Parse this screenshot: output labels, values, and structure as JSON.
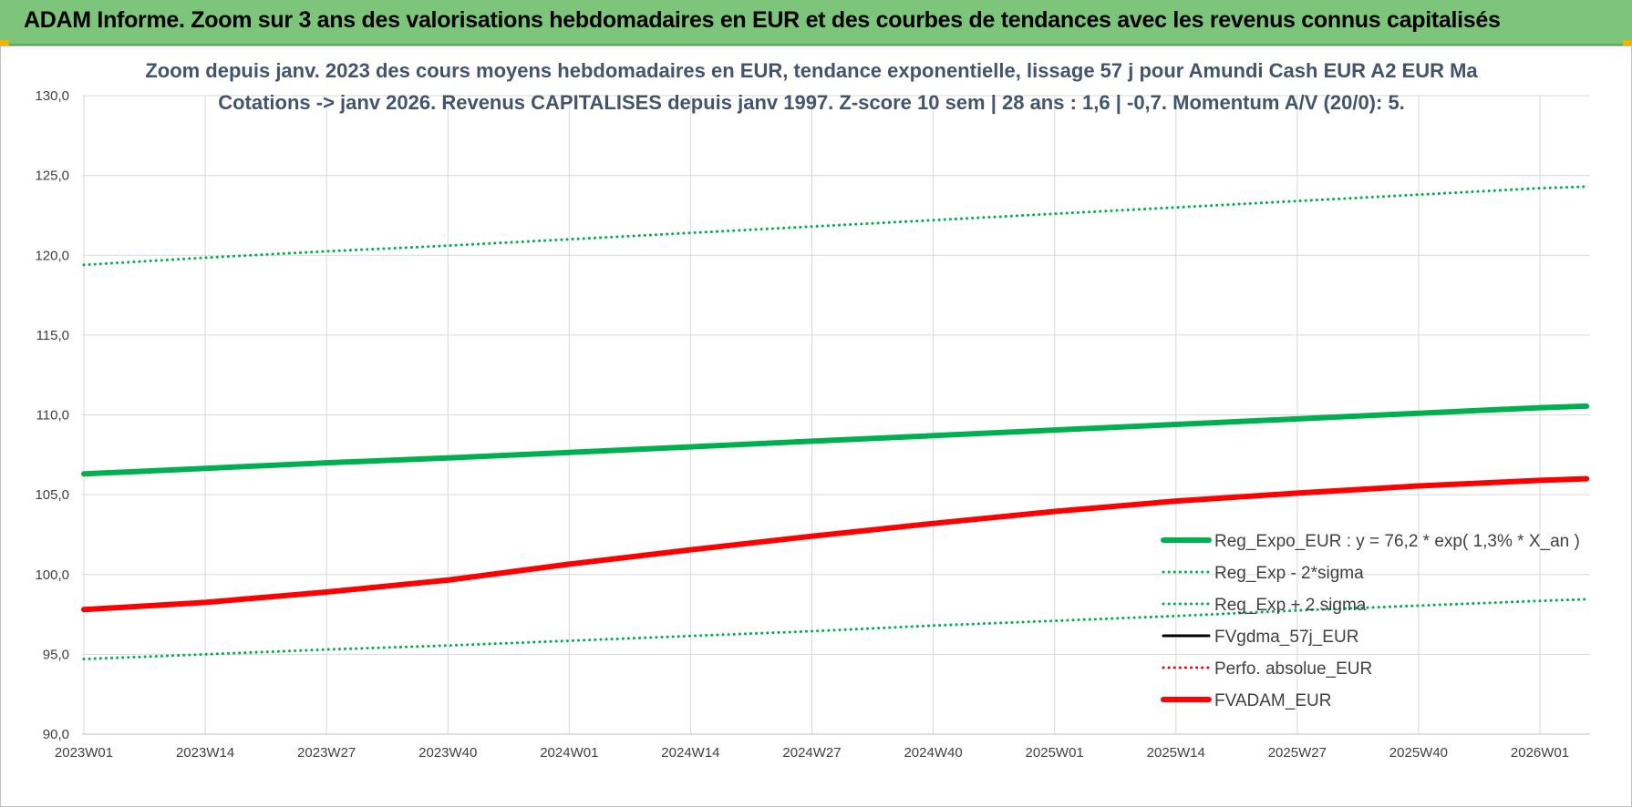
{
  "banner": {
    "title": "ADAM Informe. Zoom sur 3 ans des valorisations hebdomadaires en EUR et des courbes de tendances avec les revenus connus capitalisés"
  },
  "colors": {
    "banner": "#7dc57b",
    "green": "#00b050",
    "red": "#ff0000",
    "black": "#000000",
    "grid": "#d9d9d9",
    "title": "#44546a"
  },
  "chart_data": {
    "type": "line",
    "title": [
      "Zoom depuis janv. 2023 des cours moyens hebdomadaires en EUR, tendance exponentielle, lissage 57 j pour Amundi Cash EUR A2 EUR Ma",
      "Cotations -> janv 2026. Revenus CAPITALISES depuis janv 1997. Z-score 10 sem | 28 ans : 1,6 | -0,7. Momentum A/V (20/0): 5."
    ],
    "xlabel": "",
    "ylabel": "",
    "ylim": [
      90,
      130
    ],
    "yticks": [
      "90,0",
      "95,0",
      "100,0",
      "105,0",
      "110,0",
      "115,0",
      "120,0",
      "125,0",
      "130,0"
    ],
    "xlim": [
      "2023W01",
      "2026W06"
    ],
    "xticks": [
      "2023W01",
      "2023W14",
      "2023W27",
      "2023W40",
      "2024W01",
      "2024W14",
      "2024W27",
      "2024W40",
      "2025W01",
      "2025W14",
      "2025W27",
      "2025W40",
      "2026W01"
    ],
    "grid": true,
    "legend_position": "bottom-right",
    "x": [
      "2023W01",
      "2023W14",
      "2023W27",
      "2023W40",
      "2024W01",
      "2024W14",
      "2024W27",
      "2024W40",
      "2025W01",
      "2025W14",
      "2025W27",
      "2025W40",
      "2026W01",
      "2026W06"
    ],
    "series": [
      {
        "name": "Reg_Expo_EUR : y = 76,2 * exp( 1,3% *  X_an )",
        "style": "solid-thick",
        "color": "#00b050",
        "values": [
          106.3,
          106.65,
          107.0,
          107.3,
          107.65,
          108.0,
          108.35,
          108.7,
          109.05,
          109.4,
          109.75,
          110.1,
          110.45,
          110.55
        ]
      },
      {
        "name": "Reg_Exp - 2*sigma",
        "style": "dotted",
        "color": "#00b050",
        "values": [
          94.7,
          95.0,
          95.3,
          95.55,
          95.85,
          96.15,
          96.45,
          96.8,
          97.1,
          97.4,
          97.75,
          98.05,
          98.35,
          98.45
        ]
      },
      {
        "name": "Reg_Exp + 2 sigma",
        "style": "dotted",
        "color": "#00b050",
        "values": [
          119.4,
          119.85,
          120.25,
          120.6,
          121.0,
          121.4,
          121.8,
          122.2,
          122.6,
          123.0,
          123.4,
          123.8,
          124.2,
          124.3
        ]
      },
      {
        "name": "FVgdma_57j_EUR",
        "style": "solid",
        "color": "#000000",
        "values": [
          97.85,
          98.3,
          98.95,
          99.7,
          100.7,
          101.6,
          102.45,
          103.25,
          104.0,
          104.65,
          105.15,
          105.6,
          105.95,
          106.05
        ]
      },
      {
        "name": "Perfo. absolue_EUR",
        "style": "dotted",
        "color": "#ff0000",
        "values": [
          97.8,
          98.25,
          98.9,
          99.65,
          100.65,
          101.55,
          102.4,
          103.2,
          103.95,
          104.6,
          105.1,
          105.55,
          105.9,
          106.0
        ]
      },
      {
        "name": "FVADAM_EUR",
        "style": "solid-thick",
        "color": "#ff0000",
        "values": [
          97.8,
          98.25,
          98.9,
          99.65,
          100.65,
          101.55,
          102.4,
          103.2,
          103.95,
          104.6,
          105.1,
          105.55,
          105.9,
          106.0
        ]
      }
    ]
  }
}
